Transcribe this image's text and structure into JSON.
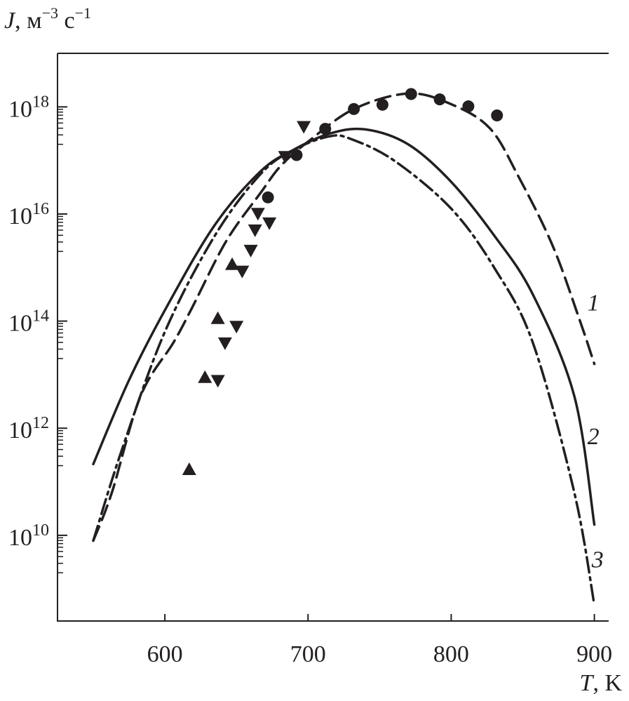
{
  "chart_data": {
    "type": "line",
    "title": "",
    "xlabel": {
      "symbol": "T",
      "unit": ", K"
    },
    "ylabel": {
      "symbol": "J",
      "unit": ", м",
      "exp1": "−3",
      "unit2": " с",
      "exp2": "−1"
    },
    "xlim": [
      525,
      910
    ],
    "ylim_log10": [
      8.4,
      19.0
    ],
    "yscale": "log",
    "x_ticks": [
      600,
      700,
      800,
      900
    ],
    "x_tick_labels": [
      "600",
      "700",
      "800",
      "900"
    ],
    "y_ticks_log10": [
      10,
      12,
      14,
      16,
      18
    ],
    "y_tick_labels": [
      {
        "base": "10",
        "exp": "10"
      },
      {
        "base": "10",
        "exp": "12"
      },
      {
        "base": "10",
        "exp": "14"
      },
      {
        "base": "10",
        "exp": "16"
      },
      {
        "base": "10",
        "exp": "18"
      }
    ],
    "grid": false,
    "curves": [
      {
        "name": "1",
        "style": "dashed",
        "points_log10": [
          [
            550,
            9.9
          ],
          [
            563,
            10.8
          ],
          [
            583,
            12.6
          ],
          [
            606,
            13.6
          ],
          [
            619,
            14.25
          ],
          [
            643,
            15.5
          ],
          [
            667,
            16.4
          ],
          [
            681,
            16.9
          ],
          [
            700,
            17.35
          ],
          [
            732,
            17.96
          ],
          [
            770,
            18.25
          ],
          [
            800,
            18.05
          ],
          [
            827,
            17.6
          ],
          [
            847,
            16.7
          ],
          [
            871,
            15.4
          ],
          [
            890,
            14.0
          ],
          [
            900,
            13.2
          ]
        ]
      },
      {
        "name": "2",
        "style": "solid",
        "points_log10": [
          [
            550,
            11.33
          ],
          [
            575,
            12.9
          ],
          [
            602,
            14.3
          ],
          [
            635,
            15.8
          ],
          [
            667,
            16.8
          ],
          [
            690,
            17.2
          ],
          [
            715,
            17.5
          ],
          [
            740,
            17.58
          ],
          [
            770,
            17.3
          ],
          [
            800,
            16.6
          ],
          [
            830,
            15.6
          ],
          [
            857,
            14.5
          ],
          [
            886,
            12.6
          ],
          [
            900,
            10.2
          ]
        ]
      },
      {
        "name": "3",
        "style": "dash-dot",
        "points_log10": [
          [
            550,
            9.9
          ],
          [
            570,
            11.6
          ],
          [
            600,
            13.8
          ],
          [
            635,
            15.6
          ],
          [
            667,
            16.75
          ],
          [
            690,
            17.2
          ],
          [
            715,
            17.45
          ],
          [
            730,
            17.4
          ],
          [
            760,
            17.0
          ],
          [
            800,
            16.1
          ],
          [
            830,
            15.0
          ],
          [
            857,
            13.6
          ],
          [
            886,
            10.8
          ],
          [
            900,
            8.7
          ]
        ]
      }
    ],
    "scatter": [
      {
        "name": "circles",
        "marker": "circle",
        "points_log10": [
          [
            672,
            16.31
          ],
          [
            692,
            17.1
          ],
          [
            712,
            17.59
          ],
          [
            732,
            17.96
          ],
          [
            752,
            18.04
          ],
          [
            772,
            18.24
          ],
          [
            792,
            18.14
          ],
          [
            812,
            18.01
          ],
          [
            832,
            17.84
          ]
        ]
      },
      {
        "name": "triangles-up",
        "marker": "triangle-up",
        "points_log10": [
          [
            617,
            11.23
          ],
          [
            628,
            12.95
          ],
          [
            637,
            14.05
          ],
          [
            647,
            15.06
          ]
        ]
      },
      {
        "name": "triangles-down",
        "marker": "triangle-down",
        "points_log10": [
          [
            637,
            12.89
          ],
          [
            642,
            13.59
          ],
          [
            650,
            13.9
          ],
          [
            654,
            14.93
          ],
          [
            660,
            15.32
          ],
          [
            663,
            15.7
          ],
          [
            665,
            16.01
          ],
          [
            673,
            15.83
          ],
          [
            684,
            17.07
          ],
          [
            697,
            17.63
          ]
        ]
      }
    ],
    "curve_labels": [
      {
        "text": "1",
        "at": [
          900,
          14.2
        ]
      },
      {
        "text": "2",
        "at": [
          900,
          11.7
        ]
      },
      {
        "text": "3",
        "at": [
          903,
          9.4
        ]
      }
    ]
  }
}
